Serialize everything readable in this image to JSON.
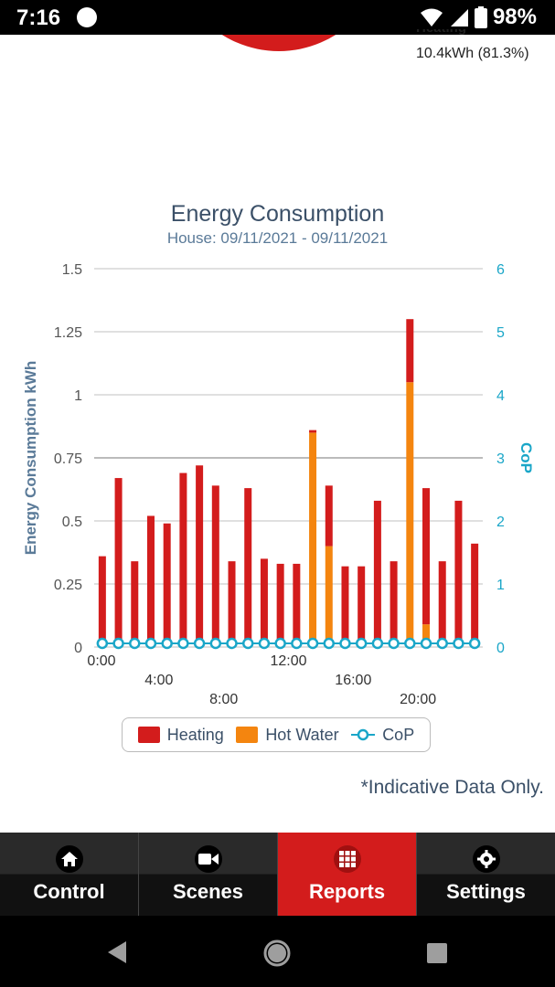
{
  "status": {
    "time": "7:16",
    "battery": "98%"
  },
  "pie_legend": {
    "label": "Heating",
    "value": "10.4kWh (81.3%)"
  },
  "chart": {
    "title": "Energy Consumption",
    "subtitle": "House: 09/11/2021 - 09/11/2021",
    "note": "*Indicative Data Only."
  },
  "chart_data": {
    "type": "bar",
    "stacked": true,
    "title": "Energy Consumption",
    "subtitle": "House: 09/11/2021 - 09/11/2021",
    "ylabel": "Energy Consumption kWh",
    "y2label": "CoP",
    "ylim": [
      0,
      1.5
    ],
    "y2lim": [
      0,
      6
    ],
    "yticks": [
      "0",
      "0.25",
      "0.5",
      "0.75",
      "1",
      "1.25",
      "1.5"
    ],
    "y2ticks": [
      "0",
      "1",
      "2",
      "3",
      "4",
      "5",
      "6"
    ],
    "x_ticks": [
      {
        "label": "0:00",
        "hour": 0,
        "row": 1
      },
      {
        "label": "4:00",
        "hour": 4,
        "row": 2
      },
      {
        "label": "8:00",
        "hour": 8,
        "row": 3
      },
      {
        "label": "12:00",
        "hour": 12,
        "row": 1
      },
      {
        "label": "16:00",
        "hour": 16,
        "row": 2
      },
      {
        "label": "20:00",
        "hour": 20,
        "row": 3
      }
    ],
    "hours": [
      0,
      1,
      2,
      3,
      4,
      5,
      6,
      7,
      8,
      9,
      10,
      11,
      12,
      13,
      14,
      15,
      16,
      17,
      18,
      19,
      20,
      21,
      22,
      23
    ],
    "series": [
      {
        "name": "Heating",
        "color": "#d31c1c",
        "values": [
          0.36,
          0.67,
          0.34,
          0.52,
          0.49,
          0.69,
          0.72,
          0.64,
          0.34,
          0.63,
          0.35,
          0.33,
          0.33,
          0.01,
          0.24,
          0.32,
          0.32,
          0.58,
          0.34,
          0.25,
          0.54,
          0.34,
          0.58,
          0.41
        ]
      },
      {
        "name": "Hot Water",
        "color": "#f4850f",
        "values": [
          0,
          0,
          0,
          0,
          0,
          0,
          0,
          0,
          0,
          0,
          0,
          0,
          0,
          0.85,
          0.4,
          0,
          0,
          0,
          0,
          1.05,
          0.09,
          0,
          0,
          0
        ]
      },
      {
        "name": "CoP",
        "color": "#1aa6c8",
        "type": "line",
        "values": [
          0,
          0,
          0,
          0,
          0,
          0,
          0,
          0,
          0,
          0,
          0,
          0,
          0,
          0,
          0,
          0,
          0,
          0,
          0,
          0,
          0,
          0,
          0,
          0
        ]
      }
    ],
    "grid": true,
    "legend_position": "bottom"
  },
  "legend": [
    {
      "label": "Heating",
      "color": "#d31c1c"
    },
    {
      "label": "Hot Water",
      "color": "#f4850f"
    },
    {
      "label": "CoP",
      "color": "#1aa6c8"
    }
  ],
  "tabs": [
    {
      "label": "Control",
      "icon": "home-icon",
      "active": false
    },
    {
      "label": "Scenes",
      "icon": "video-icon",
      "active": false
    },
    {
      "label": "Reports",
      "icon": "grid-icon",
      "active": true
    },
    {
      "label": "Settings",
      "icon": "gear-icon",
      "active": false
    }
  ]
}
